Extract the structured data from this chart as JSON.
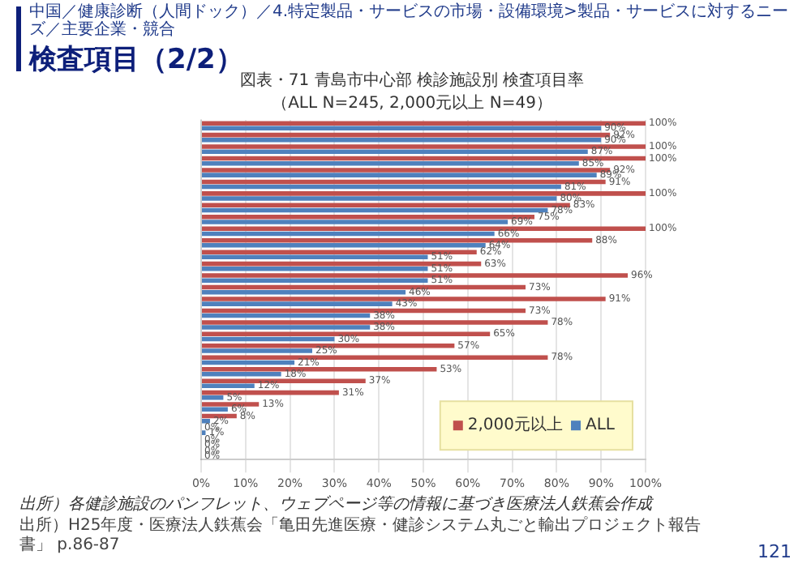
{
  "chart_data": {
    "type": "bar",
    "orientation": "horizontal",
    "title": "図表・71 青島市中心部 検診施設別 検査項目率",
    "subtitle": "（ALL N=245, 2,000元以上 N=49）",
    "categories": [
      null,
      null,
      null,
      null,
      null,
      null,
      null,
      null,
      null,
      null,
      null,
      null,
      null,
      null,
      null,
      null,
      null,
      null,
      null,
      null,
      null,
      null,
      null,
      null,
      null,
      null,
      null,
      null,
      null
    ],
    "series": [
      {
        "name": "2,000元以上",
        "color": "#c0504d",
        "values": [
          100,
          92,
          100,
          100,
          92,
          91,
          100,
          83,
          75,
          100,
          88,
          62,
          63,
          96,
          73,
          91,
          73,
          78,
          65,
          57,
          78,
          53,
          37,
          31,
          13,
          8,
          0,
          0,
          0
        ],
        "value_labels": [
          "100%",
          "92%",
          "100%",
          "100%",
          "92%",
          "91%",
          "100%",
          "83%",
          "75%",
          "100%",
          "88%",
          "62%",
          "63%",
          "96%",
          "73%",
          "91%",
          "73%",
          "78%",
          "65%",
          "57%",
          "78%",
          "53%",
          "37%",
          "31%",
          "13%",
          "8%",
          "0%",
          "0%",
          "0%"
        ]
      },
      {
        "name": "ALL",
        "color": "#4f81bd",
        "values": [
          90,
          90,
          87,
          85,
          89,
          81,
          80,
          78,
          69,
          66,
          64,
          51,
          51,
          51,
          46,
          43,
          38,
          38,
          30,
          25,
          21,
          18,
          12,
          5,
          6,
          2,
          1,
          0,
          0
        ],
        "value_labels": [
          "90%",
          "90%",
          "87%",
          "85%",
          "89%",
          "81%",
          "80%",
          "78%",
          "69%",
          "66%",
          "64%",
          "51%",
          "51%",
          "51%",
          "46%",
          "43%",
          "38%",
          "38%",
          "30%",
          "25%",
          "21%",
          "18%",
          "12%",
          "5%",
          "6%",
          "2%",
          "1%",
          "0%",
          "0%"
        ]
      }
    ],
    "xlim": [
      0,
      100
    ],
    "xticks": [
      {
        "value": 0,
        "label": "0%"
      },
      {
        "value": 10,
        "label": "10%"
      },
      {
        "value": 20,
        "label": "20%"
      },
      {
        "value": 30,
        "label": "30%"
      },
      {
        "value": 40,
        "label": "40%"
      },
      {
        "value": 50,
        "label": "50%"
      },
      {
        "value": 60,
        "label": "60%"
      },
      {
        "value": 70,
        "label": "70%"
      },
      {
        "value": 80,
        "label": "80%"
      },
      {
        "value": 90,
        "label": "90%"
      },
      {
        "value": 100,
        "label": "100%"
      }
    ],
    "grid": "x",
    "legend": "bottom right",
    "annotations": [
      "中国／健康診断（人間ドック）／4.特定製品・サービスの市場・設備環境>製品・サービスに対するニーズ／主要企業・競合",
      "検査項目（2/2）",
      "出所）各健診施設のパンフレット、ウェブページ等の情報に基づき医療法人鉄蕉会作成",
      "出所）H25年度・医療法人鉄蕉会「亀田先進医療・健診システム丸ごと輸出プロジェクト報告書」 p.86-87",
      "121"
    ]
  }
}
